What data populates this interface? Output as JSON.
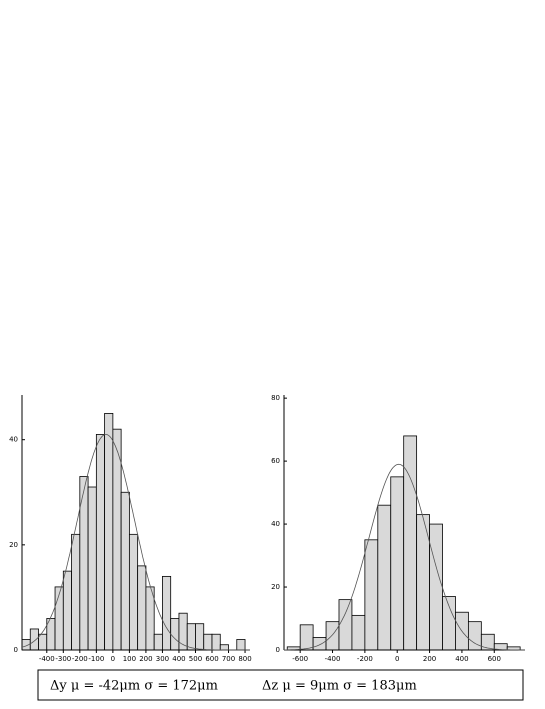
{
  "chart_data": [
    {
      "type": "histogram",
      "color": "#d9d9d9",
      "bins": [
        -550,
        -500,
        -450,
        -400,
        -350,
        -300,
        -250,
        -200,
        -150,
        -100,
        -50,
        0,
        50,
        100,
        150,
        200,
        250,
        300,
        350,
        400,
        450,
        500,
        550,
        600,
        650,
        700,
        750,
        800
      ],
      "values": [
        2,
        4,
        3,
        6,
        12,
        15,
        22,
        33,
        31,
        41,
        45,
        42,
        30,
        22,
        16,
        12,
        3,
        14,
        6,
        7,
        5,
        5,
        3,
        3,
        1,
        0,
        2
      ],
      "xlim": [
        -550,
        830
      ],
      "xticks": [
        -400,
        -300,
        -200,
        -100,
        0,
        100,
        200,
        300,
        400,
        500,
        600,
        700,
        800
      ],
      "ylim": [
        0,
        48.5
      ],
      "yticks": [
        0,
        20,
        40
      ],
      "fit": {
        "mean": -42,
        "sd": 172,
        "peak": 41
      }
    },
    {
      "type": "histogram",
      "color": "#d9d9d9",
      "bins": [
        -680,
        -600,
        -520,
        -440,
        -360,
        -280,
        -200,
        -120,
        -40,
        40,
        120,
        200,
        280,
        360,
        440,
        520,
        600,
        680,
        760
      ],
      "values": [
        1,
        8,
        4,
        9,
        16,
        11,
        35,
        46,
        55,
        68,
        43,
        40,
        17,
        12,
        9,
        5,
        2,
        1
      ],
      "xlim": [
        -700,
        790
      ],
      "xticks": [
        -600,
        -400,
        -200,
        0,
        200,
        400,
        600
      ],
      "ylim": [
        0,
        81
      ],
      "yticks": [
        0,
        20,
        40,
        60,
        80
      ],
      "fit": {
        "mean": 9,
        "sd": 183,
        "peak": 59
      }
    }
  ],
  "captions": [
    "Δy μ = -42μm  σ = 172μm",
    "Δz μ = 9μm  σ = 183μm"
  ]
}
